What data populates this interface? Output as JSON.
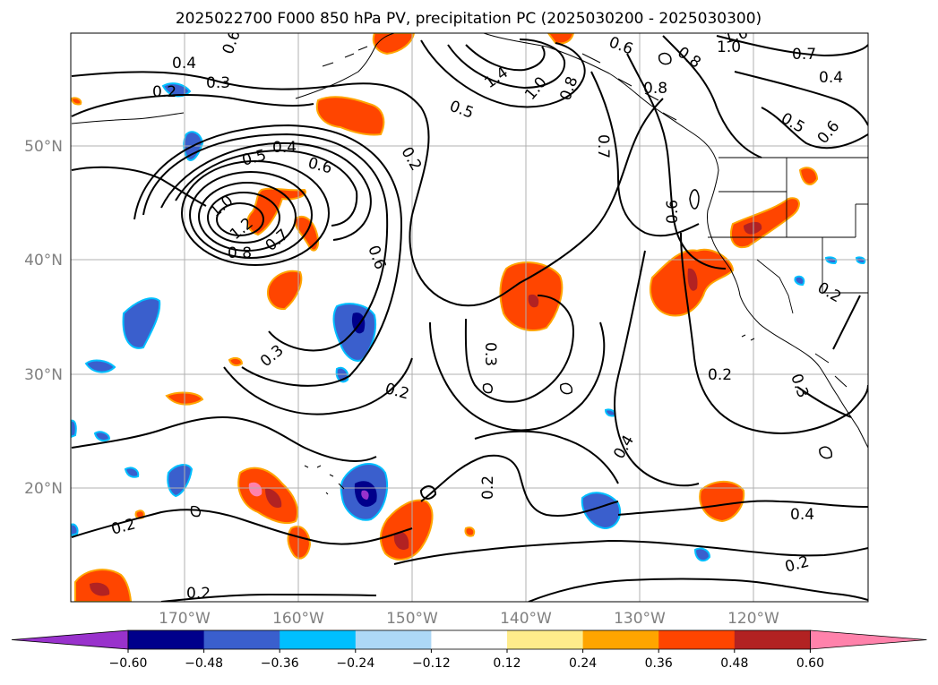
{
  "title": "2025022700 F000 850 hPa PV, precipitation PC (2025030200 - 2025030300)",
  "map": {
    "lat_ticks": [
      "50°N",
      "40°N",
      "30°N",
      "20°N"
    ],
    "lon_ticks": [
      "170°W",
      "160°W",
      "150°W",
      "140°W",
      "130°W",
      "120°W"
    ],
    "gridlines": true,
    "extent": {
      "lon": [
        -180,
        -110
      ],
      "lat": [
        10,
        60
      ]
    }
  },
  "contour_labels": [
    "0.4",
    "0.3",
    "0.2",
    "0.6",
    "0.5",
    "0.4",
    "0.6",
    "1.0",
    "1.2",
    "0.8",
    "0.7",
    "0.6",
    "0.3",
    "0.2",
    "0.2",
    "0.5",
    "1.4",
    "1.0",
    "0.8",
    "0.7",
    "0.6",
    "0.8",
    "1.0",
    "0.7",
    "0.4",
    "0.5",
    "0.6",
    "0.8",
    "0.6",
    "0.3",
    "0.2",
    "0.2",
    "0.3",
    "0.4",
    "0.2",
    "0.4",
    "0.2",
    "0.2",
    "0.2"
  ],
  "colorbar": {
    "ticks": [
      "−0.60",
      "−0.48",
      "−0.36",
      "−0.24",
      "−0.12",
      "0.12",
      "0.24",
      "0.36",
      "0.48",
      "0.60"
    ],
    "colors": [
      "#9932cc",
      "#00008b",
      "#3a5fcd",
      "#00bfff",
      "#add8f6",
      "#ffffff",
      "#ffec8b",
      "#ffa500",
      "#ff4500",
      "#b22222",
      "#ff82ab"
    ],
    "extend": "both"
  },
  "colors": {
    "grid": "#b0b0b0",
    "contour": "#000000",
    "coast": "#000000"
  }
}
